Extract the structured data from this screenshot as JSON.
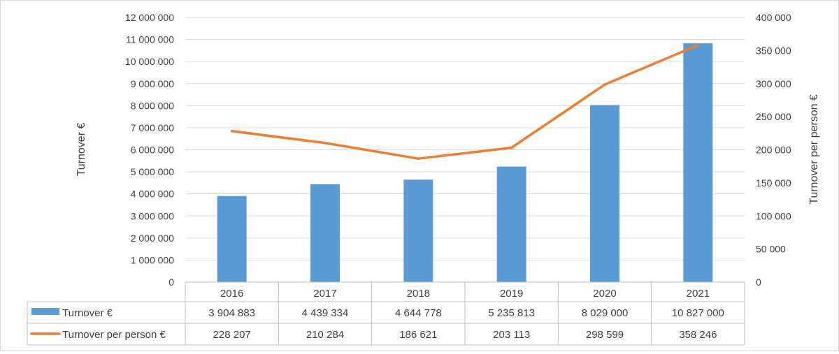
{
  "chart_data": {
    "type": "bar",
    "categories": [
      "2016",
      "2017",
      "2018",
      "2019",
      "2020",
      "2021"
    ],
    "series": [
      {
        "name": "Turnover €",
        "type": "bar",
        "axis": "left",
        "color": "#5b9bd5",
        "values": [
          3904883,
          4439334,
          4644778,
          5235813,
          8029000,
          10827000
        ],
        "labels": [
          "3 904 883",
          "4 439 334",
          "4 644 778",
          "5 235 813",
          "8 029 000",
          "10 827 000"
        ]
      },
      {
        "name": "Turnover per person €",
        "type": "line",
        "axis": "right",
        "color": "#ed7d31",
        "values": [
          228207,
          210284,
          186621,
          203113,
          298599,
          358246
        ],
        "labels": [
          "228 207",
          "210 284",
          "186 621",
          "203 113",
          "298 599",
          "358 246"
        ]
      }
    ],
    "ylabel": "Turnover €",
    "y2label": "Turnover per person €",
    "ylim": [
      0,
      12000000
    ],
    "y2lim": [
      0,
      400000
    ],
    "yticks": [
      "0",
      "1 000 000",
      "2 000 000",
      "3 000 000",
      "4 000 000",
      "5 000 000",
      "6 000 000",
      "7 000 000",
      "8 000 000",
      "9 000 000",
      "10 000 000",
      "11 000 000",
      "12 000 000"
    ],
    "y2ticks": [
      "0",
      "50 000",
      "100 000",
      "150 000",
      "200 000",
      "250 000",
      "300 000",
      "350 000",
      "400 000"
    ],
    "grid": true,
    "legend": "data-table"
  }
}
